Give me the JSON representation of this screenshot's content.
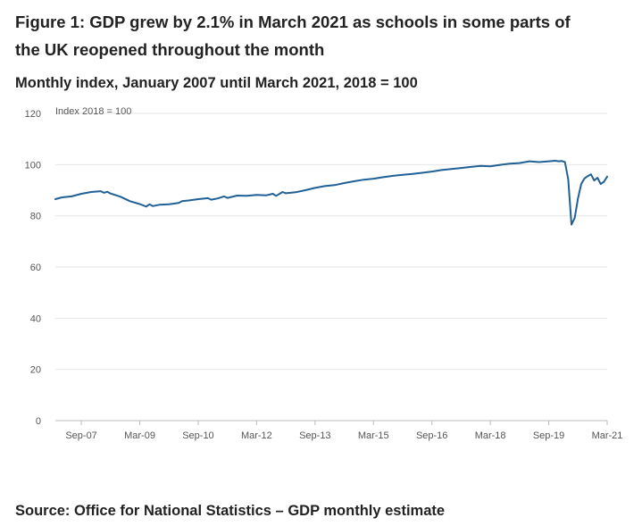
{
  "figure": {
    "title": "Figure 1: GDP grew by 2.1% in March 2021 as schools in some parts of the UK reopened throughout the month",
    "subtitle": "Monthly index, January 2007 until March 2021, 2018 = 100",
    "source": "Source: Office for National Statistics – GDP monthly estimate"
  },
  "chart_data": {
    "type": "line",
    "ylabel": "Index 2018 = 100",
    "xlabel": "",
    "ylim": [
      0,
      120
    ],
    "yticks": [
      0,
      20,
      40,
      60,
      80,
      100,
      120
    ],
    "xlim": [
      "2007-01",
      "2021-03"
    ],
    "xticks": [
      {
        "date": "2007-09",
        "label": "Sep-07"
      },
      {
        "date": "2009-03",
        "label": "Mar-09"
      },
      {
        "date": "2010-09",
        "label": "Sep-10"
      },
      {
        "date": "2012-03",
        "label": "Mar-12"
      },
      {
        "date": "2013-09",
        "label": "Sep-13"
      },
      {
        "date": "2015-03",
        "label": "Mar-15"
      },
      {
        "date": "2016-09",
        "label": "Sep-16"
      },
      {
        "date": "2018-03",
        "label": "Mar-18"
      },
      {
        "date": "2019-09",
        "label": "Sep-19"
      },
      {
        "date": "2021-03",
        "label": "Mar-21"
      }
    ],
    "grid": "horizontal",
    "line_color": "#206095",
    "grid_color": "#e6e6e6",
    "series": [
      {
        "name": "",
        "points": [
          [
            "2007-01",
            86.5
          ],
          [
            "2007-03",
            87.2
          ],
          [
            "2007-06",
            87.6
          ],
          [
            "2007-09",
            88.6
          ],
          [
            "2007-12",
            89.3
          ],
          [
            "2008-03",
            89.6
          ],
          [
            "2008-04",
            89.0
          ],
          [
            "2008-05",
            89.4
          ],
          [
            "2008-06",
            88.7
          ],
          [
            "2008-09",
            87.5
          ],
          [
            "2008-12",
            85.7
          ],
          [
            "2009-03",
            84.6
          ],
          [
            "2009-05",
            83.6
          ],
          [
            "2009-06",
            84.5
          ],
          [
            "2009-07",
            83.8
          ],
          [
            "2009-09",
            84.3
          ],
          [
            "2009-12",
            84.5
          ],
          [
            "2010-03",
            85.0
          ],
          [
            "2010-04",
            85.7
          ],
          [
            "2010-06",
            86.0
          ],
          [
            "2010-09",
            86.5
          ],
          [
            "2010-12",
            86.9
          ],
          [
            "2011-01",
            86.3
          ],
          [
            "2011-03",
            86.8
          ],
          [
            "2011-05",
            87.6
          ],
          [
            "2011-06",
            87.0
          ],
          [
            "2011-09",
            87.9
          ],
          [
            "2011-12",
            87.8
          ],
          [
            "2012-03",
            88.2
          ],
          [
            "2012-06",
            88.0
          ],
          [
            "2012-08",
            88.6
          ],
          [
            "2012-09",
            87.8
          ],
          [
            "2012-11",
            89.3
          ],
          [
            "2012-12",
            88.8
          ],
          [
            "2013-03",
            89.2
          ],
          [
            "2013-06",
            90.0
          ],
          [
            "2013-09",
            90.9
          ],
          [
            "2013-12",
            91.6
          ],
          [
            "2014-03",
            92.0
          ],
          [
            "2014-06",
            92.8
          ],
          [
            "2014-09",
            93.5
          ],
          [
            "2014-12",
            94.1
          ],
          [
            "2015-03",
            94.5
          ],
          [
            "2015-06",
            95.1
          ],
          [
            "2015-09",
            95.6
          ],
          [
            "2015-12",
            96.0
          ],
          [
            "2016-03",
            96.4
          ],
          [
            "2016-06",
            96.8
          ],
          [
            "2016-09",
            97.3
          ],
          [
            "2016-12",
            97.9
          ],
          [
            "2017-03",
            98.3
          ],
          [
            "2017-06",
            98.7
          ],
          [
            "2017-09",
            99.1
          ],
          [
            "2017-12",
            99.5
          ],
          [
            "2018-03",
            99.3
          ],
          [
            "2018-06",
            99.9
          ],
          [
            "2018-09",
            100.4
          ],
          [
            "2018-12",
            100.6
          ],
          [
            "2019-03",
            101.3
          ],
          [
            "2019-06",
            101.0
          ],
          [
            "2019-09",
            101.3
          ],
          [
            "2019-11",
            101.5
          ],
          [
            "2019-12",
            101.3
          ],
          [
            "2020-01",
            101.4
          ],
          [
            "2020-02",
            101.0
          ],
          [
            "2020-03",
            94.2
          ],
          [
            "2020-04",
            76.6
          ],
          [
            "2020-05",
            79.1
          ],
          [
            "2020-06",
            86.8
          ],
          [
            "2020-07",
            92.4
          ],
          [
            "2020-08",
            94.6
          ],
          [
            "2020-09",
            95.5
          ],
          [
            "2020-10",
            96.2
          ],
          [
            "2020-11",
            93.8
          ],
          [
            "2020-12",
            94.9
          ],
          [
            "2021-01",
            92.4
          ],
          [
            "2021-02",
            93.3
          ],
          [
            "2021-03",
            95.3
          ]
        ]
      }
    ]
  }
}
